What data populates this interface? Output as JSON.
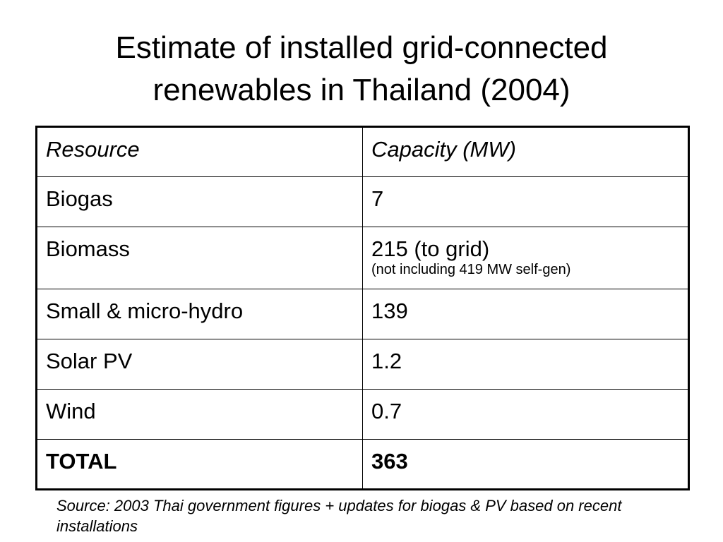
{
  "title": {
    "line1": "Estimate of installed grid-connected",
    "line2": "renewables in Thailand (2004)"
  },
  "table": {
    "headers": [
      "Resource",
      "Capacity (MW)"
    ],
    "rows": [
      {
        "resource": "Biogas",
        "capacity": "7",
        "note": ""
      },
      {
        "resource": "Biomass",
        "capacity": "215 (to grid)",
        "note": "(not including 419 MW self-gen)"
      },
      {
        "resource": "Small & micro-hydro",
        "capacity": "139",
        "note": ""
      },
      {
        "resource": "Solar PV",
        "capacity": "1.2",
        "note": ""
      },
      {
        "resource": "Wind",
        "capacity": "0.7",
        "note": ""
      },
      {
        "resource": "TOTAL",
        "capacity": "363",
        "note": ""
      }
    ]
  },
  "source": "Source: 2003 Thai government figures + updates for biogas & PV based on recent installations"
}
